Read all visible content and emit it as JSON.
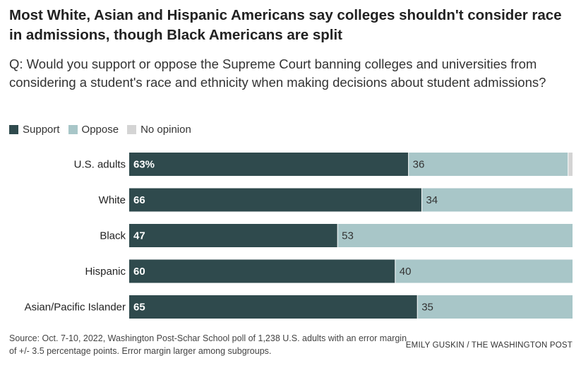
{
  "title": "Most White, Asian and Hispanic Americans say colleges shouldn't consider race in admissions, though Black Americans are split",
  "subtitle": "Q: Would you support or oppose the Supreme Court banning colleges and universities from considering a student's race and ethnicity when making decisions about student admissions?",
  "legend": [
    {
      "label": "Support",
      "color": "#2f4a4d"
    },
    {
      "label": "Oppose",
      "color": "#a8c6c8"
    },
    {
      "label": "No opinion",
      "color": "#d4d4d4"
    }
  ],
  "source": "Source: Oct. 7-10, 2022, Washington Post-Schar School poll of 1,238 U.S. adults with an error margin of +/- 3.5 percentage points. Error margin larger among subgroups.",
  "credit": "EMILY GUSKIN / THE WASHINGTON POST",
  "chart_data": {
    "type": "bar",
    "orientation": "horizontal",
    "stacked": true,
    "categories": [
      "U.S. adults",
      "White",
      "Black",
      "Hispanic",
      "Asian/Pacific Islander"
    ],
    "series": [
      {
        "name": "Support",
        "color": "#2f4a4d",
        "values": [
          63,
          66,
          47,
          60,
          65
        ],
        "labels": [
          "63%",
          "66",
          "47",
          "60",
          "65"
        ]
      },
      {
        "name": "Oppose",
        "color": "#a8c6c8",
        "values": [
          36,
          34,
          53,
          40,
          35
        ],
        "labels": [
          "36",
          "34",
          "53",
          "40",
          "35"
        ]
      },
      {
        "name": "No opinion",
        "color": "#d4d4d4",
        "values": [
          1,
          0,
          0,
          0,
          0
        ],
        "labels": [
          "",
          "",
          "",
          "",
          ""
        ]
      }
    ],
    "xlim": [
      0,
      100
    ]
  }
}
